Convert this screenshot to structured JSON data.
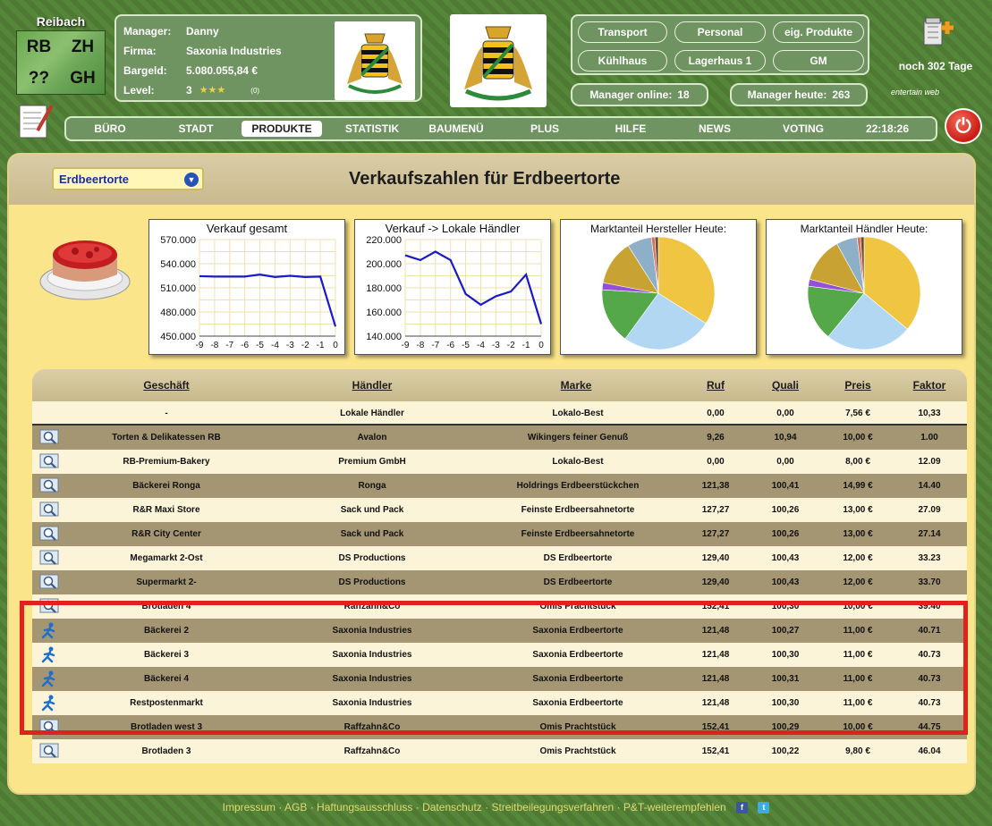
{
  "city": {
    "name": "Reibach",
    "districts": [
      "RB",
      "ZH",
      "??",
      "GH"
    ]
  },
  "manager": {
    "manager_label": "Manager:",
    "manager_value": "Danny",
    "firma_label": "Firma:",
    "firma_value": "Saxonia Industries",
    "bargeld_label": "Bargeld:",
    "bargeld_value": "5.080.055,84 €",
    "level_label": "Level:",
    "level_value": "3",
    "level_stars": "★★★",
    "level_count": "(0)"
  },
  "quick_buttons": [
    "Transport",
    "Personal",
    "eig. Produkte",
    "Kühlhaus",
    "Lagerhaus 1",
    "GM"
  ],
  "online": {
    "online_label": "Manager online:",
    "online_value": "18",
    "today_label": "Manager heute:",
    "today_value": "263"
  },
  "days_left": "noch 302 Tage",
  "brand_logo": "entertain web",
  "menu": [
    "BÜRO",
    "STADT",
    "PRODUKTE",
    "STATISTIK",
    "BAUMENÜ",
    "PLUS",
    "HILFE",
    "NEWS",
    "VOTING"
  ],
  "active_menu": "PRODUKTE",
  "clock": "22:18:26",
  "product_select": "Erdbeertorte",
  "page_title": "Verkaufszahlen für Erdbeertorte",
  "chart_data": [
    {
      "type": "line",
      "title": "Verkauf gesamt",
      "x": [
        -9,
        -8,
        -7,
        -6,
        -5,
        -4,
        -3,
        -2,
        -1,
        0
      ],
      "x_tick_labels": [
        "-9",
        "-8",
        "-7",
        "-6",
        "-5",
        "-4",
        "-3",
        "-2",
        "-1",
        "0"
      ],
      "values": [
        524500,
        524000,
        524000,
        524000,
        526500,
        523500,
        525000,
        523500,
        524000,
        462000
      ],
      "ylim": [
        450000,
        570000
      ],
      "y_ticks": [
        "570.000",
        "540.000",
        "510.000",
        "480.000",
        "450.000"
      ],
      "y_tick_values": [
        570000,
        540000,
        510000,
        480000,
        450000
      ],
      "grid": true,
      "color": "#1a1acd"
    },
    {
      "type": "line",
      "title": "Verkauf -> Lokale Händler",
      "x": [
        -9,
        -8,
        -7,
        -6,
        -5,
        -4,
        -3,
        -2,
        -1,
        0
      ],
      "x_tick_labels": [
        "-9",
        "-8",
        "-7",
        "-6",
        "-5",
        "-4",
        "-3",
        "-2",
        "-1",
        "0"
      ],
      "values": [
        207000,
        203000,
        210000,
        203000,
        175000,
        166000,
        173000,
        177000,
        191000,
        150000
      ],
      "ylim": [
        140000,
        220000
      ],
      "y_ticks": [
        "220.000",
        "200.000",
        "180.000",
        "160.000",
        "140.000"
      ],
      "y_tick_values": [
        220000,
        200000,
        180000,
        160000,
        140000
      ],
      "grid": true,
      "color": "#1a1acd"
    },
    {
      "type": "pie",
      "title": "Marktanteil Hersteller Heute:",
      "values": [
        34,
        26,
        16,
        2,
        13,
        7,
        1,
        1
      ],
      "colors": [
        "#efc542",
        "#b2d7f3",
        "#54a84a",
        "#9450d6",
        "#c9a234",
        "#8eafc8",
        "#d87060",
        "#6e4c2e"
      ]
    },
    {
      "type": "pie",
      "title": "Marktanteil Händler Heute:",
      "values": [
        36,
        25,
        16,
        2,
        13,
        6,
        1,
        1
      ],
      "colors": [
        "#efc542",
        "#b2d7f3",
        "#54a84a",
        "#9450d6",
        "#c9a234",
        "#8eafc8",
        "#d87060",
        "#6e4c2e"
      ]
    }
  ],
  "table": {
    "headers": [
      "Geschäft",
      "Händler",
      "Marke",
      "Ruf",
      "Quali",
      "Preis",
      "Faktor"
    ],
    "rows": [
      {
        "shop": "-",
        "dealer": "Lokale Händler",
        "brand": "Lokalo-Best",
        "ruf": "0,00",
        "quali": "0,00",
        "preis": "7,56 €",
        "faktor": "10,33",
        "icon": "none"
      },
      {
        "shop": "Torten & Delikatessen RB",
        "dealer": "Avalon",
        "brand": "Wikingers feiner Genuß",
        "ruf": "9,26",
        "quali": "10,94",
        "preis": "10,00 €",
        "faktor": "1.00",
        "icon": "magnifier"
      },
      {
        "shop": "RB-Premium-Bakery",
        "dealer": "Premium GmbH",
        "brand": "Lokalo-Best",
        "ruf": "0,00",
        "quali": "0,00",
        "preis": "8,00 €",
        "faktor": "12.09",
        "icon": "magnifier"
      },
      {
        "shop": "Bäckerei Ronga",
        "dealer": "Ronga",
        "brand": "Holdrings Erdbeerstückchen",
        "ruf": "121,38",
        "quali": "100,41",
        "preis": "14,99 €",
        "faktor": "14.40",
        "icon": "magnifier"
      },
      {
        "shop": "R&R Maxi Store",
        "dealer": "Sack und Pack",
        "brand": "Feinste Erdbeersahnetorte",
        "ruf": "127,27",
        "quali": "100,26",
        "preis": "13,00 €",
        "faktor": "27.09",
        "icon": "magnifier"
      },
      {
        "shop": "R&R City Center",
        "dealer": "Sack und Pack",
        "brand": "Feinste Erdbeersahnetorte",
        "ruf": "127,27",
        "quali": "100,26",
        "preis": "13,00 €",
        "faktor": "27.14",
        "icon": "magnifier"
      },
      {
        "shop": "Megamarkt 2-Ost",
        "dealer": "DS Productions",
        "brand": "DS Erdbeertorte",
        "ruf": "129,40",
        "quali": "100,43",
        "preis": "12,00 €",
        "faktor": "33.23",
        "icon": "magnifier"
      },
      {
        "shop": "Supermarkt 2-",
        "dealer": "DS Productions",
        "brand": "DS Erdbeertorte",
        "ruf": "129,40",
        "quali": "100,43",
        "preis": "12,00 €",
        "faktor": "33.70",
        "icon": "magnifier"
      },
      {
        "shop": "Brotladen 4",
        "dealer": "Raffzahn&Co",
        "brand": "Omis Prachtstück",
        "ruf": "152,41",
        "quali": "100,30",
        "preis": "10,00 €",
        "faktor": "39.40",
        "icon": "magnifier"
      },
      {
        "shop": "Bäckerei 2",
        "dealer": "Saxonia Industries",
        "brand": "Saxonia Erdbeertorte",
        "ruf": "121,48",
        "quali": "100,27",
        "preis": "11,00 €",
        "faktor": "40.71",
        "icon": "runner"
      },
      {
        "shop": "Bäckerei 3",
        "dealer": "Saxonia Industries",
        "brand": "Saxonia Erdbeertorte",
        "ruf": "121,48",
        "quali": "100,30",
        "preis": "11,00 €",
        "faktor": "40.73",
        "icon": "runner"
      },
      {
        "shop": "Bäckerei 4",
        "dealer": "Saxonia Industries",
        "brand": "Saxonia Erdbeertorte",
        "ruf": "121,48",
        "quali": "100,31",
        "preis": "11,00 €",
        "faktor": "40.73",
        "icon": "runner"
      },
      {
        "shop": "Restpostenmarkt",
        "dealer": "Saxonia Industries",
        "brand": "Saxonia Erdbeertorte",
        "ruf": "121,48",
        "quali": "100,30",
        "preis": "11,00 €",
        "faktor": "40.73",
        "icon": "runner"
      },
      {
        "shop": "Brotladen west 3",
        "dealer": "Raffzahn&Co",
        "brand": "Omis Prachtstück",
        "ruf": "152,41",
        "quali": "100,29",
        "preis": "10,00 €",
        "faktor": "44.75",
        "icon": "magnifier"
      },
      {
        "shop": "Brotladen 3",
        "dealer": "Raffzahn&Co",
        "brand": "Omis Prachtstück",
        "ruf": "152,41",
        "quali": "100,22",
        "preis": "9,80 €",
        "faktor": "46.04",
        "icon": "magnifier"
      }
    ]
  },
  "footer": {
    "links": [
      "Impressum",
      "AGB",
      "Haftungsausschluss",
      "Datenschutz",
      "Streitbeilegungsverfahren",
      "P&T-weiterempfehlen"
    ],
    "separator": " · ",
    "social": [
      "f",
      "t"
    ]
  }
}
